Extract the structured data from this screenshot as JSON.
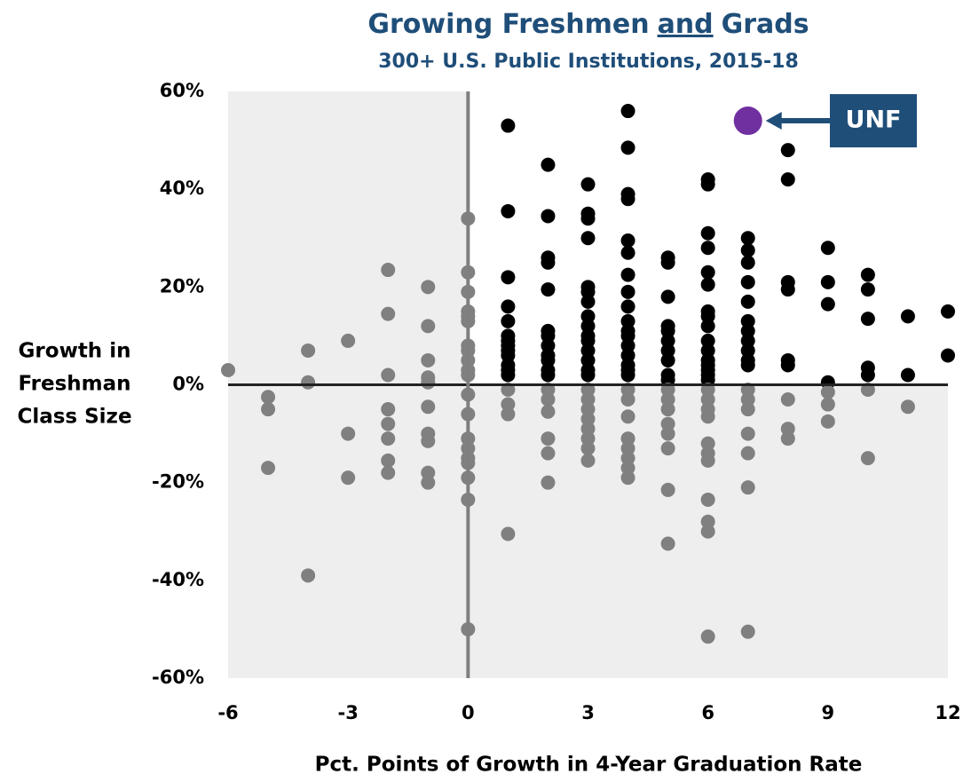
{
  "chart_data": {
    "type": "scatter",
    "title": [
      "Growing Freshmen",
      "and",
      "Grads"
    ],
    "subtitle": "300+ U.S. Public Institutions, 2015-18",
    "xlabel": "Pct. Points of Growth in 4-Year Graduation Rate",
    "ylabel": [
      "Growth in",
      "Freshman",
      "Class Size"
    ],
    "xlim": [
      -6,
      12
    ],
    "xticks": [
      -6,
      -3,
      0,
      3,
      6,
      9,
      12
    ],
    "ylim": [
      -60,
      60
    ],
    "yticks": [
      {
        "value": -60,
        "label": "-60%"
      },
      {
        "value": -40,
        "label": "-40%"
      },
      {
        "value": -20,
        "label": "-20%"
      },
      {
        "value": 0,
        "label": "0%"
      },
      {
        "value": 20,
        "label": "20%"
      },
      {
        "value": 40,
        "label": "40%"
      },
      {
        "value": 60,
        "label": "60%"
      }
    ],
    "series": [
      {
        "color": "#000000",
        "x": [
          1,
          1,
          1,
          1,
          1,
          1,
          1,
          1,
          1,
          1,
          1,
          1,
          1,
          2,
          2,
          2,
          2,
          2,
          2,
          2,
          2,
          2,
          2,
          2,
          2,
          3,
          3,
          3,
          3,
          3,
          3,
          3,
          3,
          3,
          3,
          3,
          3,
          3,
          3,
          3,
          4,
          4,
          4,
          4,
          4,
          4,
          4,
          4,
          4,
          4,
          4,
          4,
          4,
          4,
          4,
          4,
          4,
          5,
          5,
          5,
          5,
          5,
          5,
          5,
          5,
          5,
          5,
          6,
          6,
          6,
          6,
          6,
          6,
          6,
          6,
          6,
          6,
          6,
          6,
          6,
          6,
          6,
          6,
          7,
          7,
          7,
          7,
          7,
          7,
          7,
          7,
          7,
          7,
          7,
          8,
          8,
          8,
          8,
          8,
          8,
          9,
          9,
          9,
          9,
          10,
          10,
          10,
          10,
          10,
          11,
          11,
          12,
          12
        ],
        "y": [
          53,
          35.5,
          22,
          16,
          13,
          10,
          9,
          8,
          7,
          6,
          4,
          3,
          2,
          45,
          34.5,
          26,
          25,
          19.5,
          11,
          10,
          8,
          6,
          5,
          3,
          2,
          41,
          35,
          34,
          30,
          20,
          19,
          17,
          14,
          12,
          10,
          9,
          7,
          5,
          3,
          2,
          56,
          48.5,
          39,
          38,
          29.5,
          27,
          22.5,
          19,
          16,
          13,
          11,
          10,
          8,
          6,
          4,
          3,
          2,
          26,
          25,
          18,
          12,
          11,
          9,
          7,
          5,
          2,
          1,
          42,
          41,
          31,
          28,
          23,
          20.5,
          15,
          14,
          12,
          9,
          7,
          5,
          4,
          3,
          2,
          1,
          30,
          27.5,
          25,
          21,
          17,
          13,
          11,
          9,
          7,
          5,
          4,
          48,
          42,
          21,
          19.5,
          5,
          4,
          28,
          21,
          16.5,
          0.5,
          22.5,
          19.5,
          13.5,
          3.5,
          2,
          14,
          2,
          15,
          6
        ]
      },
      {
        "color": "#808080",
        "x": [
          -6,
          -5,
          -5,
          -5,
          -4,
          -4,
          -4,
          -3,
          -3,
          -3,
          -2,
          -2,
          -2,
          -2,
          -2,
          -2,
          -2,
          -2,
          -1,
          -1,
          -1,
          -1,
          -1,
          -1,
          -1,
          -1,
          -1,
          -1,
          0,
          0,
          0,
          0,
          0,
          0,
          0,
          0,
          0,
          0,
          0,
          0,
          0,
          0,
          0,
          0,
          0,
          0,
          0,
          0,
          1,
          1,
          1,
          1,
          2,
          2,
          2,
          2,
          2,
          2,
          3,
          3,
          3,
          3,
          3,
          3,
          3,
          3,
          4,
          4,
          4,
          4,
          4,
          4,
          4,
          4,
          5,
          5,
          5,
          5,
          5,
          5,
          5,
          5,
          6,
          6,
          6,
          6,
          6,
          6,
          6,
          6,
          6,
          6,
          6,
          7,
          7,
          7,
          7,
          7,
          7,
          7,
          8,
          8,
          8,
          9,
          9,
          9,
          10,
          10,
          11
        ],
        "y": [
          3,
          -2.5,
          -5,
          -17,
          7,
          0.5,
          -39,
          9,
          -10,
          -19,
          23.5,
          14.5,
          2,
          -5,
          -8,
          -11,
          -15.5,
          -18,
          20,
          12,
          5,
          1.5,
          0.5,
          -4.5,
          -10,
          -11.5,
          -18,
          -20,
          34,
          23,
          19,
          15,
          14,
          13,
          8,
          7,
          5,
          3,
          2,
          -2,
          -6,
          -11,
          -13,
          -15,
          -16,
          -19,
          -23.5,
          -50,
          -1,
          -4,
          -6,
          -30.5,
          -1,
          -3,
          -5.5,
          -11,
          -14,
          -20,
          -1,
          -3,
          -5,
          -7,
          -9,
          -11,
          -13,
          -15.5,
          -1,
          -3,
          -6.5,
          -11,
          -13,
          -15,
          -17,
          -19,
          -1,
          -3,
          -5,
          -8,
          -10,
          -13,
          -21.5,
          -32.5,
          -1,
          -3,
          -5,
          -6.5,
          -12,
          -14,
          -15.5,
          -23.5,
          -28,
          -30,
          -51.5,
          -1,
          -3,
          -5,
          -10,
          -14,
          -21,
          -50.5,
          -3,
          -9,
          -11,
          -1.5,
          -4,
          -7.5,
          -1,
          -15,
          -4.5
        ]
      },
      {
        "color": "#7030a0",
        "x": [
          7
        ],
        "y": [
          54
        ]
      }
    ],
    "annotation": {
      "text": "UNF",
      "color": "#1f4e79"
    }
  }
}
